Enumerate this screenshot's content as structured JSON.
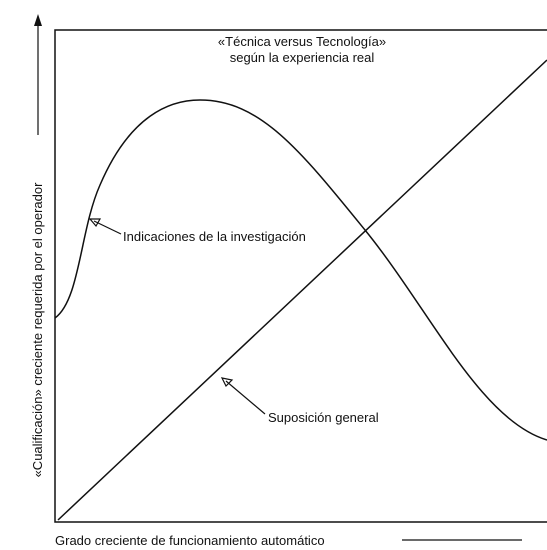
{
  "title": [
    "«Técnica versus Tecnología»",
    "según la experiencia real"
  ],
  "y_axis_label": "«Cualificación» creciente requerida por el operador",
  "x_axis_label": "Grado creciente de funcionamiento automático",
  "curves": [
    {
      "label": "Indicaciones de la investigación"
    },
    {
      "label": "Suposición general"
    }
  ]
}
